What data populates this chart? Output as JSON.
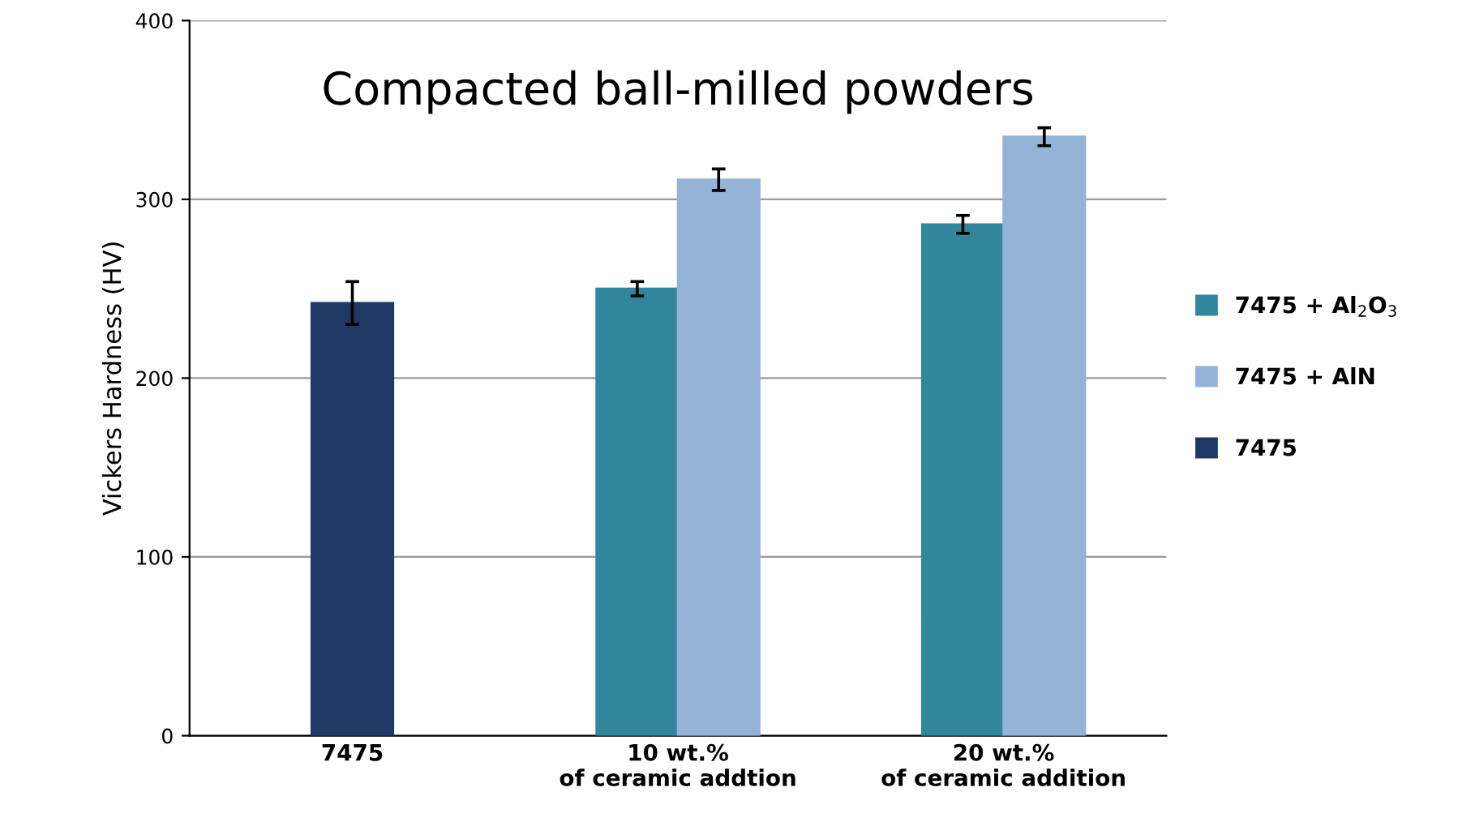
{
  "chart_data": {
    "type": "bar",
    "title": "Compacted ball-milled powders",
    "ylabel": "Vickers Hardness (HV)",
    "categories": [
      "7475",
      "10 wt.%\nof ceramic addtion",
      "20 wt.%\nof ceramic addition"
    ],
    "series": [
      {
        "name": "7475 + Al$_{2}$O$_{3}$",
        "color": "#31869b",
        "values": [
          null,
          250,
          286
        ],
        "errors": [
          null,
          4,
          5
        ]
      },
      {
        "name": "7475 + AlN",
        "color": "#95b3d7",
        "values": [
          null,
          311,
          335
        ],
        "errors": [
          null,
          6,
          5
        ]
      },
      {
        "name": "7475",
        "color": "#1f3864",
        "values": [
          242,
          null,
          null
        ],
        "errors": [
          12,
          null,
          null
        ]
      }
    ],
    "ylim": [
      0,
      400
    ],
    "yticks": [
      0,
      100,
      200,
      300,
      400
    ],
    "grid": "y",
    "legend": "right"
  }
}
